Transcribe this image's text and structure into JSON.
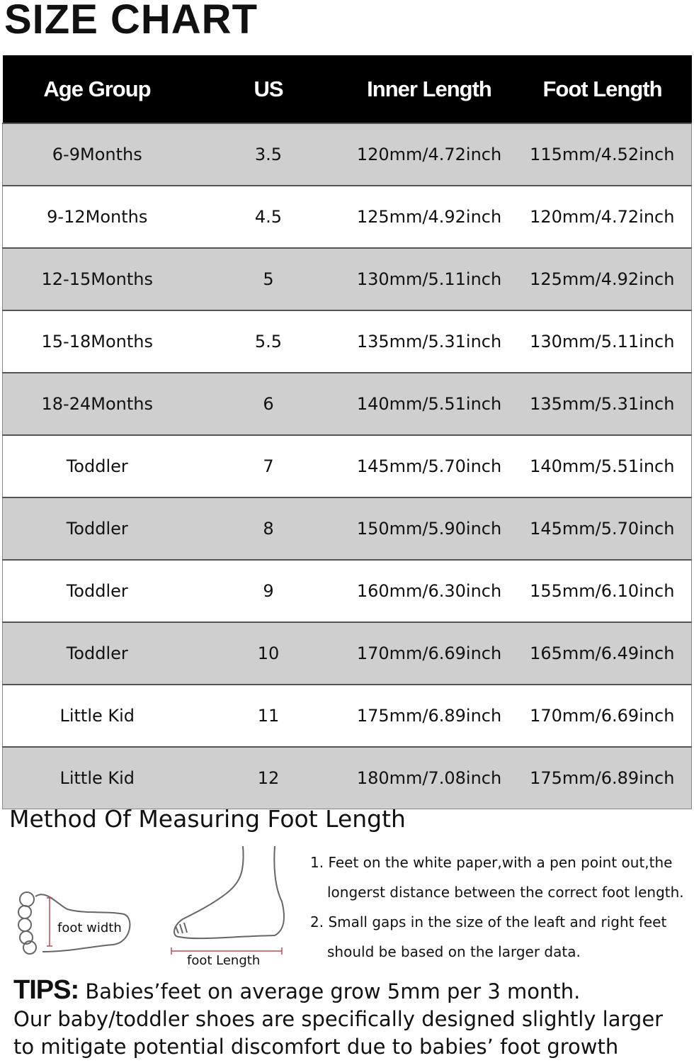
{
  "title": "SIZE CHART",
  "table": {
    "headers": [
      "Age Group",
      "US",
      "Inner Length",
      "Foot Length"
    ],
    "rows": [
      [
        "6-9Months",
        "3.5",
        "120mm/4.72inch",
        "115mm/4.52inch"
      ],
      [
        "9-12Months",
        "4.5",
        "125mm/4.92inch",
        "120mm/4.72inch"
      ],
      [
        "12-15Months",
        "5",
        "130mm/5.11inch",
        "125mm/4.92inch"
      ],
      [
        "15-18Months",
        "5.5",
        "135mm/5.31inch",
        "130mm/5.11inch"
      ],
      [
        "18-24Months",
        "6",
        "140mm/5.51inch",
        "135mm/5.31inch"
      ],
      [
        "Toddler",
        "7",
        "145mm/5.70inch",
        "140mm/5.51inch"
      ],
      [
        "Toddler",
        "8",
        "150mm/5.90inch",
        "145mm/5.70inch"
      ],
      [
        "Toddler",
        "9",
        "160mm/6.30inch",
        "155mm/6.10inch"
      ],
      [
        "Toddler",
        "10",
        "170mm/6.69inch",
        "165mm/6.49inch"
      ],
      [
        "Little Kid",
        "11",
        "175mm/6.89inch",
        "170mm/6.69inch"
      ],
      [
        "Little Kid",
        "12",
        "180mm/7.08inch",
        "175mm/6.89inch"
      ]
    ]
  },
  "method": {
    "heading": "Method Of Measuring Foot Length",
    "foot_width_label": "foot width",
    "foot_length_label": "foot Length",
    "steps": [
      [
        "1. Feet on the white paper,with a pen point out,the",
        "longerst distance between the correct foot length."
      ],
      [
        "2. Small gaps in the size of the leaft and right feet",
        "should be based on the larger data."
      ]
    ]
  },
  "tips": {
    "label": "TIPS:",
    "lines": [
      "Babies’feet on average grow 5mm per 3 month.",
      "Our baby/toddler shoes are specifically designed slightly larger",
      "to mitigate potential discomfort due to babies’ foot growth"
    ]
  },
  "colors": {
    "header_bg": "#000000",
    "stripe": "#cfcfcf",
    "measure_line": "#b05050"
  }
}
